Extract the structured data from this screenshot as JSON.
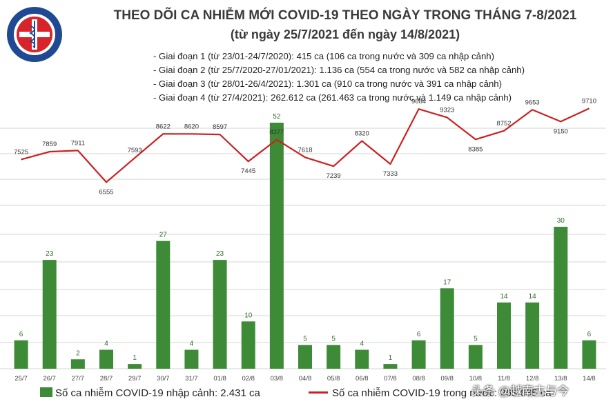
{
  "header": {
    "logo_text_top": "BỘ Y TẾ",
    "logo_text_bottom": "MINISTRY OF HEALTH",
    "title": "THEO DÕI CA NHIỄM MỚI COVID-19 THEO NGÀY TRONG THÁNG 7-8/2021",
    "subtitle": "(từ ngày 25/7/2021 đến ngày 14/8/2021)"
  },
  "stages": [
    "- Giai đoạn 1 (từ 23/01-24/7/2020): 415 ca (106 ca trong nước và 309 ca nhập cảnh)",
    "- Giai đoạn 2 (từ 25/7/2020-27/01/2021): 1.136 ca (554 ca trong nước và 582 ca nhập cảnh)",
    "- Giai đoạn 3 (từ 28/01-26/4/2021): 1.301 ca (910 ca trong nước và 391 ca nhập cảnh)",
    "- Giai đoạn 4 (từ 27/4/2021): 262.612 ca (261.463 ca trong nước và 1.149 ca nhập cảnh)"
  ],
  "chart_data": {
    "type": "bar+line",
    "categories": [
      "25/7",
      "26/7",
      "27/7",
      "28/7",
      "29/7",
      "30/7",
      "31/7",
      "01/8",
      "02/8",
      "03/8",
      "04/8",
      "05/8",
      "06/8",
      "07/8",
      "08/8",
      "09/8",
      "10/8",
      "11/8",
      "12/8",
      "13/8",
      "14/8"
    ],
    "series": [
      {
        "name": "Số ca nhiễm COVID-19 nhập cảnh: 2.431 ca",
        "type": "bar",
        "color": "#3d8b37",
        "values": [
          6,
          23,
          2,
          4,
          1,
          27,
          4,
          23,
          10,
          52,
          5,
          5,
          4,
          1,
          6,
          17,
          5,
          14,
          14,
          30,
          6
        ]
      },
      {
        "name": "Số ca nhiễm COVID-19 trong nước: 263.635 ca",
        "type": "line",
        "color": "#cc1f1f",
        "values": [
          7525,
          7859,
          7911,
          6555,
          7593,
          8622,
          8620,
          8597,
          7445,
          8377,
          7618,
          7239,
          8320,
          7333,
          9684,
          9323,
          8385,
          8752,
          9653,
          9150,
          9710
        ]
      }
    ],
    "bar_ylim": [
      0,
      52
    ],
    "line_ylim": [
      5800,
      9750
    ],
    "grid": true,
    "legend_position": "bottom"
  },
  "legend": {
    "bar_label": "Số ca nhiễm COVID-19 nhập cảnh: 2.431 ca",
    "line_label": "Số ca nhiễm COVID-19 trong nước: 263.635 ca"
  },
  "watermark": "头条 @越南古与今"
}
